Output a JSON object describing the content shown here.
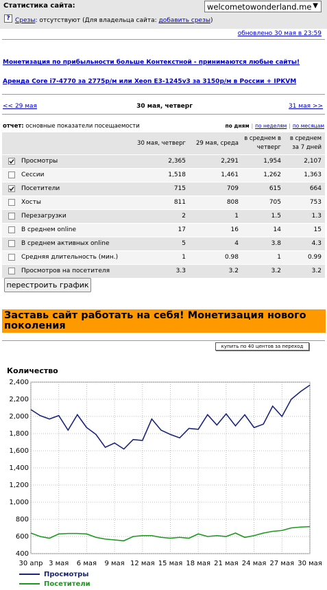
{
  "header": {
    "site_label": "Статистика сайта:",
    "site_select": "welcometowonderland.me",
    "help_icon": "?",
    "slices_link": "Срезы",
    "slices_text": ": отсутствуют (Для владельца сайта: ",
    "slices_add": "добавить срезы",
    "slices_close": ")",
    "updated": "обновлено 30 мая в 23:59"
  },
  "ads": [
    "Монетизация по прибыльности больше Контекстной - принимаются любые сайты!",
    "Аренда Core i7-4770 за 2775р/м или Xeon E3-1245v3 за 3150р/м в России + IPKVM"
  ],
  "nav": {
    "prev": "<< 29 мая",
    "current": "30 мая, четверг",
    "next": "31 мая >>"
  },
  "report": {
    "label": "отчет:",
    "title": "основные показатели посещаемости",
    "periods": [
      "по дням",
      "по неделям",
      "по месяцам"
    ],
    "separator": "|"
  },
  "table": {
    "columns": [
      "30 мая, четверг",
      "29 мая, среда",
      "в среднем в четверг",
      "в среднем за 7 дней"
    ],
    "rows": [
      {
        "label": "Просмотры",
        "checked": true,
        "values": [
          "2,365",
          "2,291",
          "1,954",
          "2,107"
        ]
      },
      {
        "label": "Сессии",
        "checked": false,
        "values": [
          "1,518",
          "1,461",
          "1,262",
          "1,363"
        ]
      },
      {
        "label": "Посетители",
        "checked": true,
        "values": [
          "715",
          "709",
          "615",
          "664"
        ]
      },
      {
        "label": "Хосты",
        "checked": false,
        "values": [
          "811",
          "808",
          "705",
          "753"
        ]
      },
      {
        "label": "Перезагрузки",
        "checked": false,
        "values": [
          "2",
          "1",
          "1.5",
          "1.3"
        ]
      },
      {
        "label": "В среднем online",
        "checked": false,
        "values": [
          "17",
          "16",
          "14",
          "15"
        ]
      },
      {
        "label": "В среднем активных online",
        "checked": false,
        "values": [
          "5",
          "4",
          "3.8",
          "4.3"
        ]
      },
      {
        "label": "Средняя длительность (мин.)",
        "checked": false,
        "values": [
          "1",
          "0.98",
          "1",
          "0.99"
        ]
      },
      {
        "label": "Просмотров на посетителя",
        "checked": false,
        "values": [
          "3.3",
          "3.2",
          "3.2",
          "3.2"
        ]
      }
    ]
  },
  "rebuild_button": "перестроить график",
  "banner": "Заставь сайт работать на себя! Монетизация нового поколения",
  "buy_button": "купить по 40 центов за переход",
  "chart_data": {
    "type": "line",
    "title": "Количество",
    "categories": [
      "30 апр",
      null,
      null,
      "3 мая",
      null,
      null,
      "6 мая",
      null,
      null,
      "9 мая",
      null,
      null,
      "12 мая",
      null,
      null,
      "15 мая",
      null,
      null,
      "18 мая",
      null,
      null,
      "21 мая",
      null,
      null,
      "24 мая",
      null,
      null,
      "27 мая",
      null,
      null,
      "30 мая"
    ],
    "series": [
      {
        "name": "Просмотры",
        "color": "#1a237e",
        "values": [
          2080,
          2010,
          1970,
          2010,
          1840,
          2020,
          1870,
          1790,
          1640,
          1690,
          1620,
          1730,
          1720,
          1970,
          1840,
          1790,
          1750,
          1860,
          1850,
          2020,
          1900,
          2030,
          1890,
          2020,
          1870,
          1910,
          2120,
          2000,
          2200,
          2290,
          2365
        ]
      },
      {
        "name": "Посетители",
        "color": "#1a9a1a",
        "values": [
          640,
          600,
          580,
          630,
          635,
          635,
          630,
          590,
          570,
          560,
          550,
          600,
          610,
          610,
          590,
          580,
          590,
          580,
          630,
          600,
          610,
          600,
          640,
          590,
          610,
          640,
          660,
          670,
          700,
          710,
          715
        ]
      }
    ],
    "ylim": [
      400,
      2400
    ],
    "yticks": [
      400,
      600,
      800,
      {
        "value": 1000,
        "label": "1,000"
      },
      {
        "value": 1200,
        "label": "1,200"
      },
      {
        "value": 1400,
        "label": "1,400"
      },
      {
        "value": 1600,
        "label": "1,600"
      },
      {
        "value": 1800,
        "label": "1,800"
      },
      {
        "value": 2000,
        "label": "2,000"
      },
      {
        "value": 2200,
        "label": "2,200"
      },
      {
        "value": 2400,
        "label": "2,400"
      }
    ],
    "grid": true
  }
}
